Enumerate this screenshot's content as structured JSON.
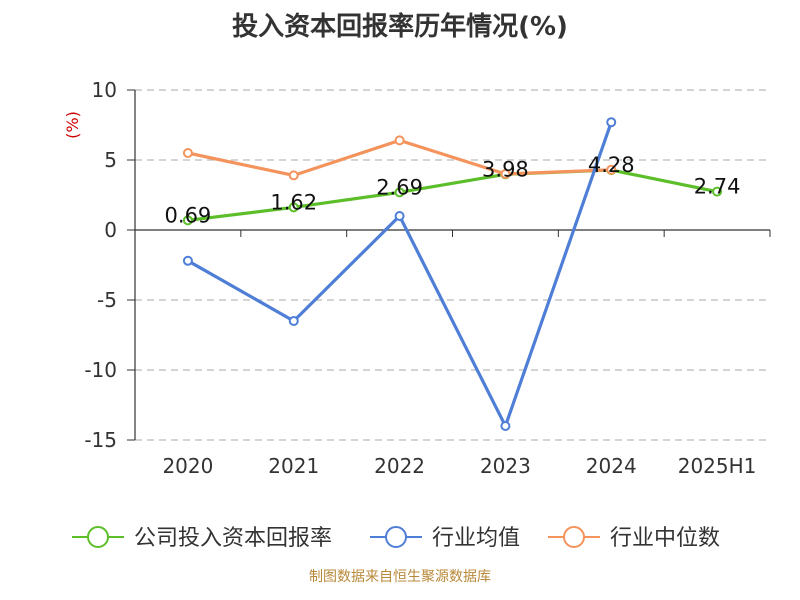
{
  "title": "投入资本回报率历年情况(%)",
  "source": "制图数据来自恒生聚源数据库",
  "chart_data": {
    "type": "line",
    "title": "投入资本回报率历年情况(%)",
    "ylabel": "(%)",
    "xlabel": "",
    "ylim": [
      -15,
      10
    ],
    "yticks": [
      10,
      5,
      0,
      -5,
      -10,
      -15
    ],
    "categories": [
      "2020",
      "2021",
      "2022",
      "2023",
      "2024",
      "2025H1"
    ],
    "grid": true,
    "legend_position": "bottom",
    "series": [
      {
        "name": "公司投入资本回报率",
        "color": "#5cbf2a",
        "values": [
          0.69,
          1.62,
          2.69,
          3.98,
          4.28,
          2.74
        ],
        "labels": [
          "0.69",
          "1.62",
          "2.69",
          "3.98",
          "4.28",
          "2.74"
        ]
      },
      {
        "name": "行业均值",
        "color": "#4f7ed6",
        "values": [
          -2.2,
          -6.5,
          1.0,
          -14.0,
          7.7,
          null
        ]
      },
      {
        "name": "行业中位数",
        "color": "#f4935c",
        "values": [
          5.5,
          3.9,
          6.4,
          4.0,
          4.3,
          null
        ]
      }
    ]
  }
}
